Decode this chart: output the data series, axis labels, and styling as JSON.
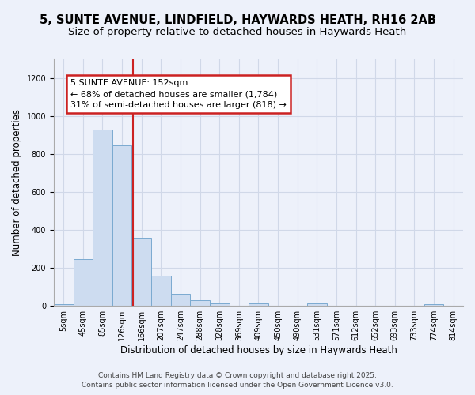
{
  "title_line1": "5, SUNTE AVENUE, LINDFIELD, HAYWARDS HEATH, RH16 2AB",
  "title_line2": "Size of property relative to detached houses in Haywards Heath",
  "xlabel": "Distribution of detached houses by size in Haywards Heath",
  "ylabel": "Number of detached properties",
  "categories": [
    "5sqm",
    "45sqm",
    "85sqm",
    "126sqm",
    "166sqm",
    "207sqm",
    "247sqm",
    "288sqm",
    "328sqm",
    "369sqm",
    "409sqm",
    "450sqm",
    "490sqm",
    "531sqm",
    "571sqm",
    "612sqm",
    "652sqm",
    "693sqm",
    "733sqm",
    "774sqm",
    "814sqm"
  ],
  "values": [
    8,
    248,
    930,
    845,
    358,
    158,
    62,
    28,
    12,
    0,
    12,
    0,
    0,
    12,
    0,
    0,
    0,
    0,
    0,
    8,
    0
  ],
  "bar_color": "#cddcf0",
  "bar_edge_color": "#7aaad0",
  "grid_color": "#d0d8e8",
  "background_color": "#edf1fa",
  "red_line_x": 3.55,
  "annotation_text": "5 SUNTE AVENUE: 152sqm\n← 68% of detached houses are smaller (1,784)\n31% of semi-detached houses are larger (818) →",
  "annotation_box_facecolor": "#ffffff",
  "annotation_border_color": "#cc2222",
  "ylim": [
    0,
    1300
  ],
  "yticks": [
    0,
    200,
    400,
    600,
    800,
    1000,
    1200
  ],
  "footer_line1": "Contains HM Land Registry data © Crown copyright and database right 2025.",
  "footer_line2": "Contains public sector information licensed under the Open Government Licence v3.0.",
  "title_fontsize": 10.5,
  "subtitle_fontsize": 9.5,
  "axis_label_fontsize": 8.5,
  "tick_fontsize": 7,
  "annotation_fontsize": 8,
  "footer_fontsize": 6.5
}
